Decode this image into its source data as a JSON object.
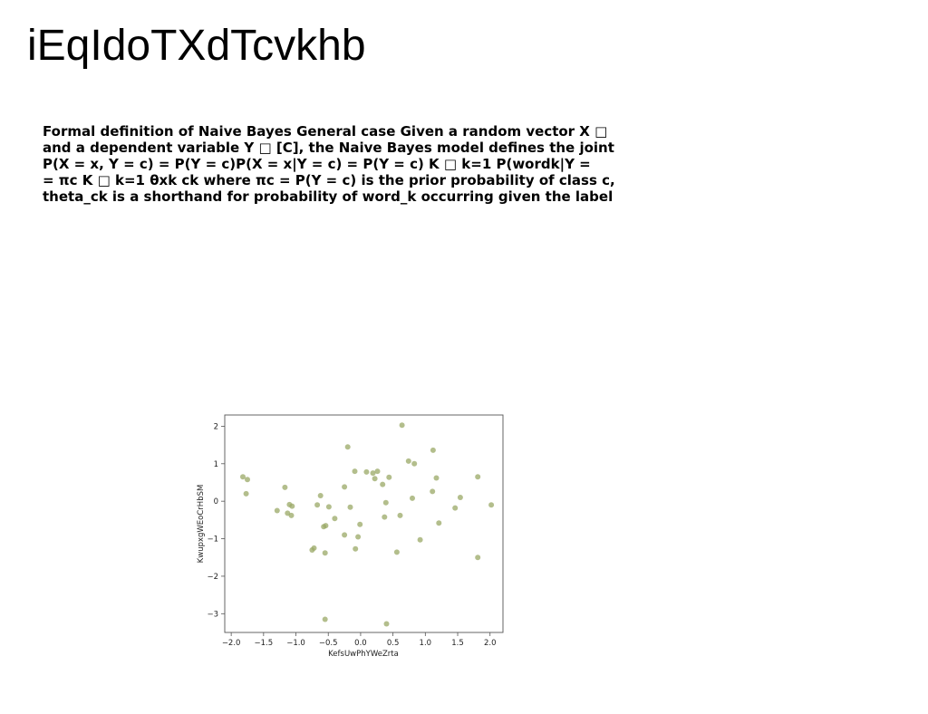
{
  "page": {
    "title": "iEqIdoTXdTcvkhb",
    "description_lines": [
      "Formal definition of Naive Bayes General case Given a random vector X □",
      "and a dependent variable Y □ [C], the Naive Bayes model defines the joint",
      "P(X = x, Y = c) = P(Y = c)P(X = x|Y = c) = P(Y = c) K □ k=1 P(wordk|Y =",
      "= πc K □ k=1 θxk ck where πc = P(Y = c) is the prior probability of class c,",
      "theta_ck is a shorthand for probability of word_k occurring given the label"
    ]
  },
  "chart_data": {
    "type": "scatter",
    "title": "",
    "xlabel": "KefsUwPhYWeZrta",
    "ylabel": "KwupxgWEoCrHbSM",
    "xlim": [
      -2.1,
      2.2
    ],
    "ylim": [
      -3.5,
      2.3
    ],
    "xticks": [
      -2.0,
      -1.5,
      -1.0,
      -0.5,
      0.0,
      0.5,
      1.0,
      1.5,
      2.0
    ],
    "xtick_labels": [
      "−2.0",
      "−1.5",
      "−1.0",
      "−0.5",
      "0.0",
      "0.5",
      "1.0",
      "1.5",
      "2.0"
    ],
    "yticks": [
      -3,
      -2,
      -1,
      0,
      1,
      2
    ],
    "ytick_labels": [
      "−3",
      "−2",
      "−1",
      "0",
      "1",
      "2"
    ],
    "grid": false,
    "point_color": "#9aa866",
    "points": [
      {
        "x": -1.82,
        "y": 0.65
      },
      {
        "x": -1.75,
        "y": 0.58
      },
      {
        "x": -1.77,
        "y": 0.2
      },
      {
        "x": -1.29,
        "y": -0.25
      },
      {
        "x": -1.17,
        "y": 0.37
      },
      {
        "x": -1.13,
        "y": -0.32
      },
      {
        "x": -1.1,
        "y": -0.09
      },
      {
        "x": -1.06,
        "y": -0.13
      },
      {
        "x": -1.07,
        "y": -0.38
      },
      {
        "x": -0.75,
        "y": -1.3
      },
      {
        "x": -0.72,
        "y": -1.25
      },
      {
        "x": -0.67,
        "y": -0.1
      },
      {
        "x": -0.62,
        "y": 0.15
      },
      {
        "x": -0.57,
        "y": -0.68
      },
      {
        "x": -0.54,
        "y": -0.65
      },
      {
        "x": -0.55,
        "y": -1.38
      },
      {
        "x": -0.55,
        "y": -3.15
      },
      {
        "x": -0.49,
        "y": -0.15
      },
      {
        "x": -0.4,
        "y": -0.46
      },
      {
        "x": -0.25,
        "y": -0.9
      },
      {
        "x": -0.25,
        "y": 0.38
      },
      {
        "x": -0.2,
        "y": 1.45
      },
      {
        "x": -0.16,
        "y": -0.16
      },
      {
        "x": -0.09,
        "y": 0.8
      },
      {
        "x": -0.08,
        "y": -1.27
      },
      {
        "x": -0.04,
        "y": -0.95
      },
      {
        "x": -0.01,
        "y": -0.62
      },
      {
        "x": 0.09,
        "y": 0.78
      },
      {
        "x": 0.19,
        "y": 0.75
      },
      {
        "x": 0.22,
        "y": 0.6
      },
      {
        "x": 0.26,
        "y": 0.8
      },
      {
        "x": 0.34,
        "y": 0.45
      },
      {
        "x": 0.37,
        "y": -0.42
      },
      {
        "x": 0.39,
        "y": -0.04
      },
      {
        "x": 0.4,
        "y": -3.27
      },
      {
        "x": 0.44,
        "y": 0.64
      },
      {
        "x": 0.56,
        "y": -1.36
      },
      {
        "x": 0.61,
        "y": -0.38
      },
      {
        "x": 0.64,
        "y": 2.03
      },
      {
        "x": 0.74,
        "y": 1.07
      },
      {
        "x": 0.8,
        "y": 0.08
      },
      {
        "x": 0.83,
        "y": 1.0
      },
      {
        "x": 0.92,
        "y": -1.03
      },
      {
        "x": 1.11,
        "y": 0.26
      },
      {
        "x": 1.12,
        "y": 1.36
      },
      {
        "x": 1.17,
        "y": 0.62
      },
      {
        "x": 1.21,
        "y": -0.58
      },
      {
        "x": 1.46,
        "y": -0.18
      },
      {
        "x": 1.54,
        "y": 0.1
      },
      {
        "x": 1.81,
        "y": 0.65
      },
      {
        "x": 1.81,
        "y": -1.5
      },
      {
        "x": 2.02,
        "y": -0.1
      }
    ]
  }
}
